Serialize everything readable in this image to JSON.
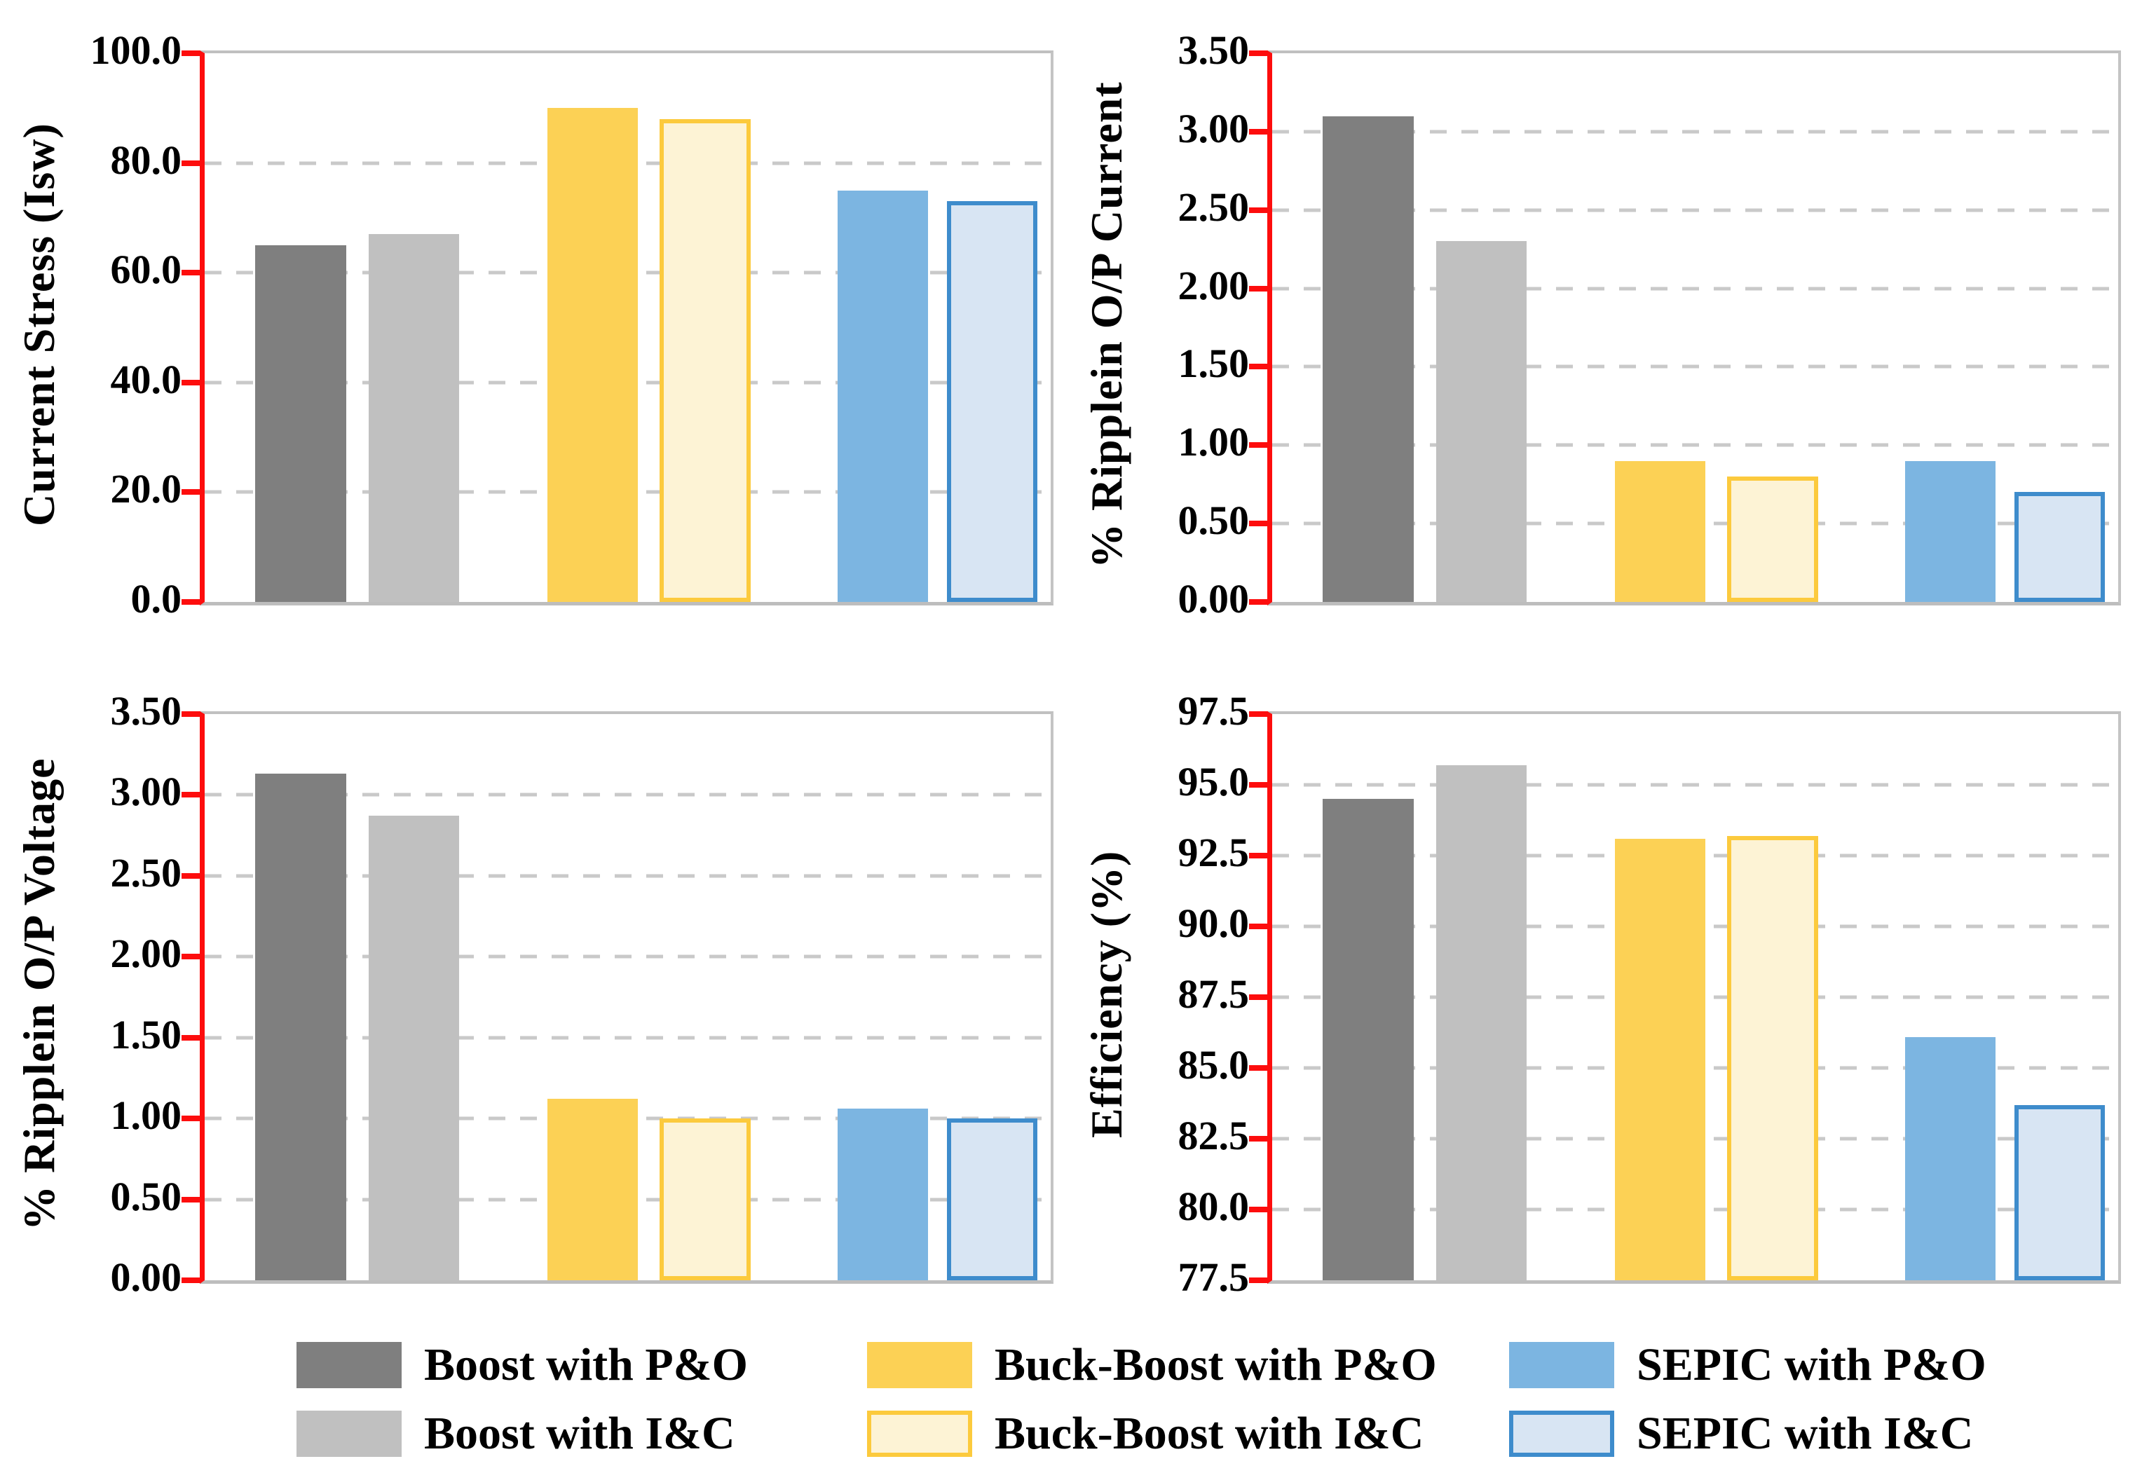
{
  "figure": {
    "background": "#ffffff",
    "description": "2x2 grid of bar charts comparing DC-DC converter topologies with MPPT algorithms"
  },
  "colors": {
    "axis_line": "#fd0d0d",
    "gridline": "#c9c9c9",
    "plot_border": "#c0c0c0",
    "text": "#000000"
  },
  "series_styles": [
    {
      "name": "Boost with P&O",
      "fill": "#7f7f7f",
      "border": null
    },
    {
      "name": "Boost with I&C",
      "fill": "#c0c0c0",
      "border": null
    },
    {
      "name": "Buck-Boost with P&O",
      "fill": "#fcd155",
      "border": null
    },
    {
      "name": "Buck-Boost with I&C",
      "fill": "#fdf3d5",
      "border": "#fcca3d"
    },
    {
      "name": "SEPIC with P&O",
      "fill": "#7cb5e1",
      "border": null
    },
    {
      "name": "SEPIC with I&C",
      "fill": "#d8e5f3",
      "border": "#3e8ccc"
    }
  ],
  "chart_data": [
    {
      "type": "bar",
      "title": "",
      "xlabel": "",
      "ylabel": "Current Stress (Isw)",
      "categories": [
        "Boost with P&O",
        "Boost with I&C",
        "Buck-Boost with P&O",
        "Buck-Boost with I&C",
        "SEPIC with P&O",
        "SEPIC with I&C"
      ],
      "values": [
        65,
        67,
        90,
        88,
        75,
        73
      ],
      "ylim": [
        0,
        100
      ],
      "yticks": [
        "0.0",
        "20.0",
        "40.0",
        "60.0",
        "80.0",
        "100.0"
      ],
      "grid": "dashed horizontal",
      "legend_position": "bottom shared"
    },
    {
      "type": "bar",
      "title": "",
      "xlabel": "",
      "ylabel": "% Ripplein O/P Current",
      "categories": [
        "Boost with P&O",
        "Boost with I&C",
        "Buck-Boost with P&O",
        "Buck-Boost with I&C",
        "SEPIC with P&O",
        "SEPIC with I&C"
      ],
      "values": [
        3.1,
        2.3,
        0.9,
        0.8,
        0.9,
        0.7
      ],
      "ylim": [
        0,
        3.5
      ],
      "yticks": [
        "0.00",
        "0.50",
        "1.00",
        "1.50",
        "2.00",
        "2.50",
        "3.00",
        "3.50"
      ],
      "grid": "dashed horizontal",
      "legend_position": "bottom shared"
    },
    {
      "type": "bar",
      "title": "",
      "xlabel": "",
      "ylabel": "% Ripplein O/P Voltage",
      "categories": [
        "Boost with P&O",
        "Boost with I&C",
        "Buck-Boost with P&O",
        "Buck-Boost with I&C",
        "SEPIC with P&O",
        "SEPIC with I&C"
      ],
      "values": [
        3.13,
        2.87,
        1.12,
        1.0,
        1.06,
        1.0
      ],
      "ylim": [
        0,
        3.5
      ],
      "yticks": [
        "0.00",
        "0.50",
        "1.00",
        "1.50",
        "2.00",
        "2.50",
        "3.00",
        "3.50"
      ],
      "grid": "dashed horizontal",
      "legend_position": "bottom shared"
    },
    {
      "type": "bar",
      "title": "",
      "xlabel": "",
      "ylabel": "Efficiency (%)",
      "categories": [
        "Boost with P&O",
        "Boost with I&C",
        "Buck-Boost with P&O",
        "Buck-Boost with I&C",
        "SEPIC with P&O",
        "SEPIC with I&C"
      ],
      "values": [
        94.5,
        95.7,
        93.1,
        93.2,
        86.1,
        83.7
      ],
      "ylim": [
        77.5,
        97.5
      ],
      "yticks": [
        "77.5",
        "80.0",
        "82.5",
        "85.0",
        "87.5",
        "90.0",
        "92.5",
        "95.0",
        "97.5"
      ],
      "grid": "dashed horizontal",
      "legend_position": "bottom shared"
    }
  ],
  "legend": {
    "items": [
      {
        "label": "Boost with P&O"
      },
      {
        "label": "Boost with I&C"
      },
      {
        "label": "Buck-Boost with P&O"
      },
      {
        "label": "Buck-Boost with I&C"
      },
      {
        "label": "SEPIC with P&O"
      },
      {
        "label": "SEPIC with I&C"
      }
    ]
  }
}
